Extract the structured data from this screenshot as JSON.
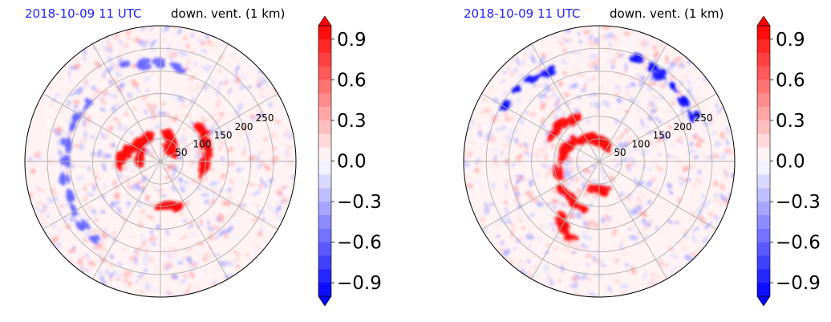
{
  "chart_data": [
    {
      "type": "heatmap",
      "projection": "polar",
      "title_left": "2018-10-09 11 UTC",
      "title_right": "down. vent. (1 km)",
      "radial_ticks": [
        "50",
        "100",
        "150",
        "200",
        "250"
      ],
      "radial_tick_values": [
        50,
        100,
        150,
        200,
        250
      ],
      "r_max": 300,
      "colorbar": {
        "ticks": [
          "0.9",
          "0.6",
          "0.3",
          "0.0",
          "−0.3",
          "−0.6",
          "−0.9"
        ],
        "tick_values": [
          0.9,
          0.6,
          0.3,
          0.0,
          -0.3,
          -0.6,
          -0.9
        ],
        "range": [
          -1.0,
          1.0
        ],
        "extend": "both",
        "colormap": "bwr",
        "low_color": "#0000ff",
        "mid_color": "#ffffff",
        "high_color": "#ff0000"
      },
      "pattern": [
        {
          "value": 0.95,
          "r_deg": [
            [
              112,
              62
            ],
            [
              118,
              60
            ],
            [
              124,
              58
            ],
            [
              130,
              57
            ],
            [
              136,
              58
            ],
            [
              142,
              61
            ],
            [
              148,
              64
            ],
            [
              154,
              68
            ],
            [
              160,
              73
            ],
            [
              166,
              78
            ],
            [
              172,
              84
            ],
            [
              178,
              90
            ],
            [
              184,
              96
            ],
            [
              48,
              30
            ],
            [
              52,
              34
            ],
            [
              56,
              38
            ],
            [
              60,
              43
            ],
            [
              64,
              48
            ],
            [
              68,
              53
            ],
            [
              72,
              58
            ],
            [
              76,
              63
            ],
            [
              80,
              69
            ],
            [
              -12,
              96
            ],
            [
              -6,
              98
            ],
            [
              0,
              100
            ],
            [
              6,
              102
            ],
            [
              12,
              104
            ],
            [
              18,
              106
            ],
            [
              24,
              109
            ],
            [
              30,
              112
            ],
            [
              36,
              114
            ],
            [
              42,
              117
            ],
            [
              150,
              44
            ],
            [
              160,
              46
            ],
            [
              170,
              48
            ],
            [
              180,
              50
            ],
            [
              270,
              96
            ],
            [
              275,
              99
            ],
            [
              280,
              102
            ],
            [
              285,
              104
            ],
            [
              290,
              106
            ],
            [
              295,
              110
            ]
          ]
        },
        {
          "value": -0.6,
          "r_deg": [
            [
              140,
              205
            ],
            [
              150,
              208
            ],
            [
              160,
              210
            ],
            [
              170,
              212
            ],
            [
              180,
              214
            ],
            [
              190,
              216
            ],
            [
              200,
              218
            ],
            [
              210,
              220
            ],
            [
              220,
              222
            ],
            [
              230,
              225
            ],
            [
              80,
              210
            ],
            [
              90,
              214
            ],
            [
              100,
              218
            ],
            [
              110,
              222
            ]
          ]
        }
      ]
    },
    {
      "type": "heatmap",
      "projection": "polar",
      "title_left": "2018-10-09 11 UTC",
      "title_right": "down. vent. (1 km)",
      "radial_ticks": [
        "50",
        "100",
        "150",
        "200",
        "250"
      ],
      "radial_tick_values": [
        50,
        100,
        150,
        200,
        250
      ],
      "r_max": 300,
      "colorbar": {
        "ticks": [
          "0.9",
          "0.6",
          "0.3",
          "0.0",
          "−0.3",
          "−0.6",
          "−0.9"
        ],
        "tick_values": [
          0.9,
          0.6,
          0.3,
          0.0,
          -0.3,
          -0.6,
          -0.9
        ],
        "range": [
          -1.0,
          1.0
        ],
        "extend": "both",
        "colormap": "bwr",
        "low_color": "#0000ff",
        "mid_color": "#ffffff",
        "high_color": "#ff0000"
      },
      "pattern": [
        {
          "value": 0.95,
          "r_deg": [
            [
              60,
              35
            ],
            [
              70,
              38
            ],
            [
              80,
              42
            ],
            [
              90,
              47
            ],
            [
              100,
              52
            ],
            [
              110,
              57
            ],
            [
              120,
              62
            ],
            [
              130,
              67
            ],
            [
              140,
              72
            ],
            [
              150,
              76
            ],
            [
              160,
              80
            ],
            [
              170,
              84
            ],
            [
              180,
              88
            ],
            [
              190,
              92
            ],
            [
              200,
              96
            ],
            [
              220,
              100
            ],
            [
              230,
              104
            ],
            [
              240,
              108
            ],
            [
              250,
              112
            ],
            [
              120,
              110
            ],
            [
              126,
              112
            ],
            [
              132,
              114
            ],
            [
              138,
              116
            ],
            [
              144,
              118
            ],
            [
              150,
              120
            ],
            [
              260,
              60
            ],
            [
              270,
              64
            ],
            [
              280,
              68
            ],
            [
              235,
              150
            ],
            [
              240,
              160
            ],
            [
              245,
              170
            ],
            [
              250,
              180
            ]
          ]
        },
        {
          "value": -0.95,
          "r_deg": [
            [
              25,
              230
            ],
            [
              35,
              232
            ],
            [
              45,
              234
            ],
            [
              55,
              236
            ],
            [
              60,
              240
            ],
            [
              70,
              244
            ],
            [
              120,
              230
            ],
            [
              130,
              235
            ],
            [
              140,
              240
            ],
            [
              150,
              245
            ]
          ]
        }
      ]
    }
  ]
}
